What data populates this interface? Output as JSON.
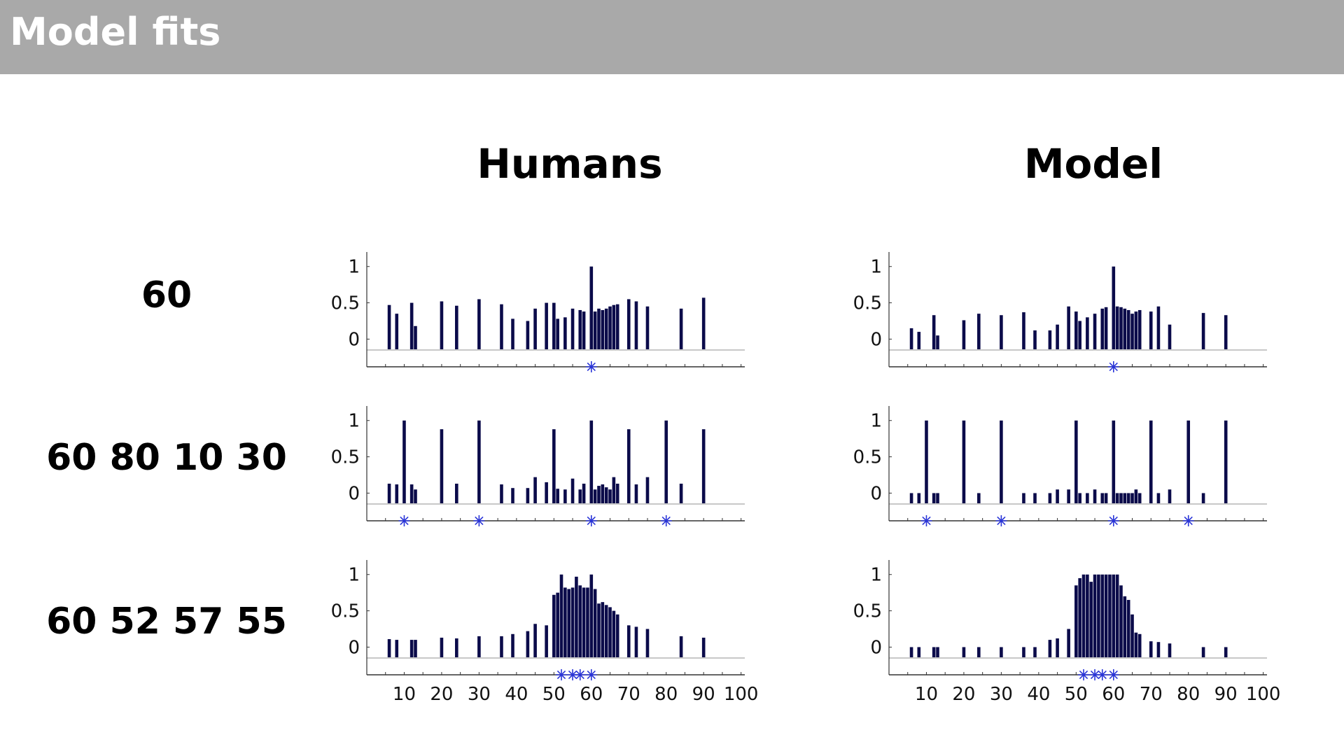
{
  "slide": {
    "title": "Model fits"
  },
  "columns": [
    "Humans",
    "Model"
  ],
  "rows": [
    "60",
    "60 80 10 30",
    "60 52 57 55"
  ],
  "colors": {
    "bar": "#0b0b4a",
    "marker": "#2a35d8",
    "header": "#a9a9a9"
  },
  "chart_data": [
    {
      "type": "bar",
      "column": "Humans",
      "row": "60",
      "x": [
        6,
        8,
        12,
        13,
        20,
        24,
        30,
        36,
        39,
        43,
        45,
        48,
        50,
        51,
        53,
        55,
        57,
        58,
        60,
        61,
        62,
        63,
        64,
        65,
        66,
        67,
        70,
        72,
        75,
        84,
        90
      ],
      "values": [
        0.47,
        0.35,
        0.5,
        0.18,
        0.52,
        0.46,
        0.55,
        0.48,
        0.28,
        0.25,
        0.42,
        0.5,
        0.5,
        0.28,
        0.3,
        0.42,
        0.4,
        0.38,
        1.0,
        0.38,
        0.42,
        0.4,
        0.42,
        0.45,
        0.47,
        0.48,
        0.55,
        0.52,
        0.45,
        0.42,
        0.57
      ],
      "targets": [
        60
      ],
      "yticks": [
        "0",
        "0.5",
        "1"
      ],
      "ylim": [
        -0.15,
        1.2
      ],
      "xlim": [
        0,
        101
      ]
    },
    {
      "type": "bar",
      "column": "Model",
      "row": "60",
      "x": [
        6,
        8,
        12,
        13,
        20,
        24,
        30,
        36,
        39,
        43,
        45,
        48,
        50,
        51,
        53,
        55,
        57,
        58,
        60,
        61,
        62,
        63,
        64,
        65,
        66,
        67,
        70,
        72,
        75,
        84,
        90
      ],
      "values": [
        0.15,
        0.1,
        0.33,
        0.05,
        0.26,
        0.35,
        0.33,
        0.37,
        0.12,
        0.12,
        0.2,
        0.45,
        0.38,
        0.25,
        0.3,
        0.35,
        0.42,
        0.44,
        1.0,
        0.45,
        0.44,
        0.42,
        0.4,
        0.35,
        0.38,
        0.4,
        0.38,
        0.45,
        0.2,
        0.36,
        0.33
      ],
      "targets": [
        60
      ],
      "yticks": [
        "0",
        "0.5",
        "1"
      ],
      "ylim": [
        -0.15,
        1.2
      ],
      "xlim": [
        0,
        101
      ]
    },
    {
      "type": "bar",
      "column": "Humans",
      "row": "60 80 10 30",
      "x": [
        6,
        8,
        10,
        12,
        13,
        20,
        24,
        30,
        36,
        39,
        43,
        45,
        48,
        50,
        51,
        53,
        55,
        57,
        58,
        60,
        61,
        62,
        63,
        64,
        65,
        66,
        67,
        70,
        72,
        75,
        80,
        84,
        90
      ],
      "values": [
        0.13,
        0.12,
        1.0,
        0.12,
        0.05,
        0.88,
        0.13,
        1.0,
        0.12,
        0.07,
        0.07,
        0.22,
        0.15,
        0.88,
        0.06,
        0.05,
        0.2,
        0.05,
        0.13,
        1.0,
        0.05,
        0.1,
        0.12,
        0.08,
        0.05,
        0.22,
        0.13,
        0.88,
        0.12,
        0.22,
        1.0,
        0.13,
        0.88
      ],
      "targets": [
        60,
        80,
        10,
        30
      ],
      "yticks": [
        "0",
        "0.5",
        "1"
      ],
      "ylim": [
        -0.15,
        1.2
      ],
      "xlim": [
        0,
        101
      ]
    },
    {
      "type": "bar",
      "column": "Model",
      "row": "60 80 10 30",
      "x": [
        6,
        8,
        10,
        12,
        13,
        20,
        24,
        30,
        36,
        39,
        43,
        45,
        48,
        50,
        51,
        53,
        55,
        57,
        58,
        60,
        61,
        62,
        63,
        64,
        65,
        66,
        67,
        70,
        72,
        75,
        80,
        84,
        90
      ],
      "values": [
        0.0,
        0.0,
        1.0,
        0.0,
        0.0,
        1.0,
        0.0,
        1.0,
        0.0,
        0.0,
        0.0,
        0.05,
        0.05,
        1.0,
        0.0,
        0.0,
        0.05,
        0.0,
        0.0,
        1.0,
        0.0,
        0.0,
        0.0,
        0.0,
        0.0,
        0.05,
        0.0,
        1.0,
        0.0,
        0.05,
        1.0,
        0.0,
        1.0
      ],
      "targets": [
        60,
        80,
        10,
        30
      ],
      "yticks": [
        "0",
        "0.5",
        "1"
      ],
      "ylim": [
        -0.15,
        1.2
      ],
      "xlim": [
        0,
        101
      ]
    },
    {
      "type": "bar",
      "column": "Humans",
      "row": "60 52 57 55",
      "x": [
        6,
        8,
        12,
        13,
        20,
        24,
        30,
        36,
        39,
        43,
        45,
        48,
        50,
        51,
        52,
        53,
        54,
        55,
        56,
        57,
        58,
        59,
        60,
        61,
        62,
        63,
        64,
        65,
        66,
        67,
        70,
        72,
        75,
        84,
        90
      ],
      "values": [
        0.11,
        0.1,
        0.1,
        0.1,
        0.13,
        0.12,
        0.15,
        0.15,
        0.18,
        0.22,
        0.32,
        0.3,
        0.72,
        0.75,
        1.0,
        0.82,
        0.8,
        0.82,
        0.97,
        0.85,
        0.82,
        0.82,
        1.0,
        0.8,
        0.6,
        0.62,
        0.58,
        0.55,
        0.5,
        0.45,
        0.3,
        0.28,
        0.25,
        0.15,
        0.13
      ],
      "targets": [
        60,
        52,
        57,
        55
      ],
      "yticks": [
        "0",
        "0.5",
        "1"
      ],
      "ylim": [
        -0.15,
        1.2
      ],
      "xlim": [
        0,
        101
      ]
    },
    {
      "type": "bar",
      "column": "Model",
      "row": "60 52 57 55",
      "x": [
        6,
        8,
        12,
        13,
        20,
        24,
        30,
        36,
        39,
        43,
        45,
        48,
        50,
        51,
        52,
        53,
        54,
        55,
        56,
        57,
        58,
        59,
        60,
        61,
        62,
        63,
        64,
        65,
        66,
        67,
        70,
        72,
        75,
        84,
        90
      ],
      "values": [
        0.0,
        0.0,
        0.0,
        0.0,
        0.0,
        0.0,
        0.0,
        0.0,
        0.0,
        0.1,
        0.12,
        0.25,
        0.85,
        0.95,
        1.0,
        1.0,
        0.9,
        1.0,
        1.0,
        1.0,
        1.0,
        1.0,
        1.0,
        1.0,
        0.85,
        0.7,
        0.65,
        0.45,
        0.2,
        0.18,
        0.08,
        0.07,
        0.05,
        0.0,
        0.0
      ],
      "targets": [
        60,
        52,
        57,
        55
      ],
      "yticks": [
        "0",
        "0.5",
        "1"
      ],
      "ylim": [
        -0.15,
        1.2
      ],
      "xlim": [
        0,
        101
      ]
    }
  ],
  "xticks": [
    "10",
    "20",
    "30",
    "40",
    "50",
    "60",
    "70",
    "80",
    "90",
    "100"
  ]
}
